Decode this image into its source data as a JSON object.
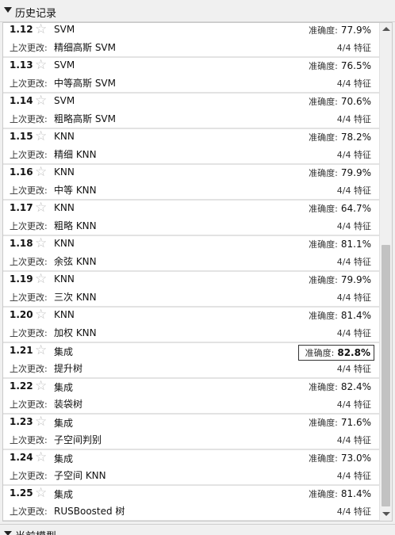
{
  "history_panel": {
    "title": "历史记录",
    "last_change_label": "上次更改:",
    "accuracy_label": "准确度:",
    "rows": [
      {
        "id": "1.12",
        "model": "SVM",
        "last_change": "精细高斯 SVM",
        "accuracy": "77.9%",
        "features": "4/4 特征",
        "best": false
      },
      {
        "id": "1.13",
        "model": "SVM",
        "last_change": "中等高斯 SVM",
        "accuracy": "76.5%",
        "features": "4/4 特征",
        "best": false
      },
      {
        "id": "1.14",
        "model": "SVM",
        "last_change": "粗略高斯 SVM",
        "accuracy": "70.6%",
        "features": "4/4 特征",
        "best": false
      },
      {
        "id": "1.15",
        "model": "KNN",
        "last_change": "精细 KNN",
        "accuracy": "78.2%",
        "features": "4/4 特征",
        "best": false
      },
      {
        "id": "1.16",
        "model": "KNN",
        "last_change": "中等 KNN",
        "accuracy": "79.9%",
        "features": "4/4 特征",
        "best": false
      },
      {
        "id": "1.17",
        "model": "KNN",
        "last_change": "粗略 KNN",
        "accuracy": "64.7%",
        "features": "4/4 特征",
        "best": false
      },
      {
        "id": "1.18",
        "model": "KNN",
        "last_change": "余弦 KNN",
        "accuracy": "81.1%",
        "features": "4/4 特征",
        "best": false
      },
      {
        "id": "1.19",
        "model": "KNN",
        "last_change": "三次 KNN",
        "accuracy": "79.9%",
        "features": "4/4 特征",
        "best": false
      },
      {
        "id": "1.20",
        "model": "KNN",
        "last_change": "加权 KNN",
        "accuracy": "81.4%",
        "features": "4/4 特征",
        "best": false
      },
      {
        "id": "1.21",
        "model": "集成",
        "last_change": "提升树",
        "accuracy": "82.8%",
        "features": "4/4 特征",
        "best": true
      },
      {
        "id": "1.22",
        "model": "集成",
        "last_change": "装袋树",
        "accuracy": "82.4%",
        "features": "4/4 特征",
        "best": false
      },
      {
        "id": "1.23",
        "model": "集成",
        "last_change": "子空间判别",
        "accuracy": "71.6%",
        "features": "4/4 特征",
        "best": false
      },
      {
        "id": "1.24",
        "model": "集成",
        "last_change": "子空间 KNN",
        "accuracy": "73.0%",
        "features": "4/4 特征",
        "best": false
      },
      {
        "id": "1.25",
        "model": "集成",
        "last_change": "RUSBoosted 树",
        "accuracy": "81.4%",
        "features": "4/4 特征",
        "best": false
      }
    ]
  },
  "current_model_panel": {
    "title": "当前模型"
  },
  "icons": {
    "favorite": "star-outline-icon",
    "collapse": "caret-down-icon"
  },
  "colors": {
    "highlight_border": "#333333",
    "row_divider": "#e3e3e3"
  }
}
